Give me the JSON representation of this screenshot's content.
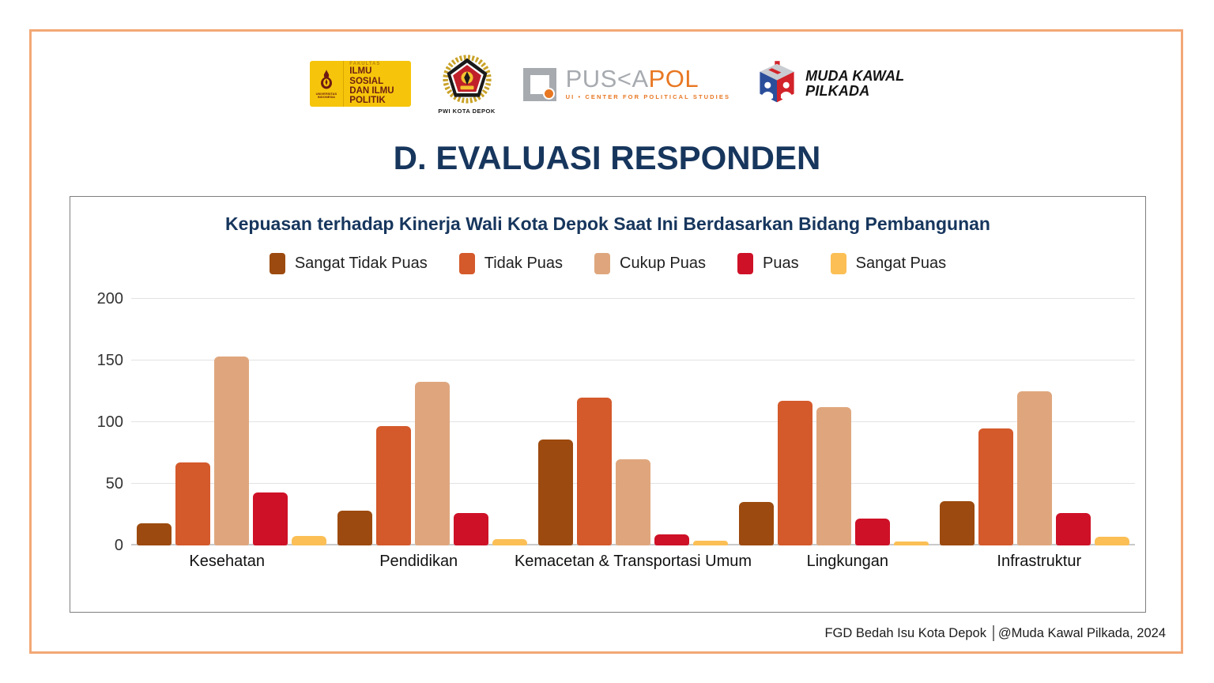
{
  "logos": {
    "fisip": {
      "university": "UNIVERSITAS INDONESIA",
      "faculty": "FAKULTAS",
      "line1": "ILMU SOSIAL",
      "line2": "DAN ILMU",
      "line3": "POLITIK"
    },
    "pwi": {
      "caption": "PWI KOTA DEPOK"
    },
    "puskapol": {
      "name_gray": "PUS<A",
      "name_orange": "POL",
      "subtitle": "UI • CENTER FOR POLITICAL STUDIES"
    },
    "muda_kawal_pilkada": {
      "line1": "MUDA KAWAL",
      "line2": "PILKADA"
    }
  },
  "page_title": "D. EVALUASI RESPONDEN",
  "footer": "FGD Bedah Isu Kota Depok │@Muda Kawal Pilkada, 2024",
  "colors": {
    "frame_orange": "#F2A876",
    "navy": "#17365D",
    "panel_border": "#7F7F7F",
    "gridline": "#E3E3E3"
  },
  "chart_data": {
    "type": "bar",
    "title": "Kepuasan terhadap Kinerja Wali Kota Depok Saat Ini Berdasarkan Bidang Pembangunan",
    "categories": [
      "Kesehatan",
      "Pendidikan",
      "Kemacetan & Transportasi Umum",
      "Lingkungan",
      "Infrastruktur"
    ],
    "series": [
      {
        "name": "Sangat Tidak Puas",
        "color": "#9C4A0F",
        "values": [
          18,
          28,
          86,
          35,
          36
        ]
      },
      {
        "name": "Tidak Puas",
        "color": "#D4592B",
        "values": [
          67,
          97,
          120,
          117,
          95
        ]
      },
      {
        "name": "Cukup Puas",
        "color": "#DFA67D",
        "values": [
          153,
          133,
          70,
          112,
          125
        ]
      },
      {
        "name": "Puas",
        "color": "#CE1127",
        "values": [
          43,
          26,
          9,
          22,
          26
        ]
      },
      {
        "name": "Sangat Puas",
        "color": "#FBBF55",
        "values": [
          8,
          5,
          4,
          3,
          7
        ]
      }
    ],
    "xlabel": "",
    "ylabel": "",
    "ylim": [
      0,
      200
    ],
    "yticks": [
      0,
      50,
      100,
      150,
      200
    ],
    "grid": true,
    "legend_position": "top"
  }
}
